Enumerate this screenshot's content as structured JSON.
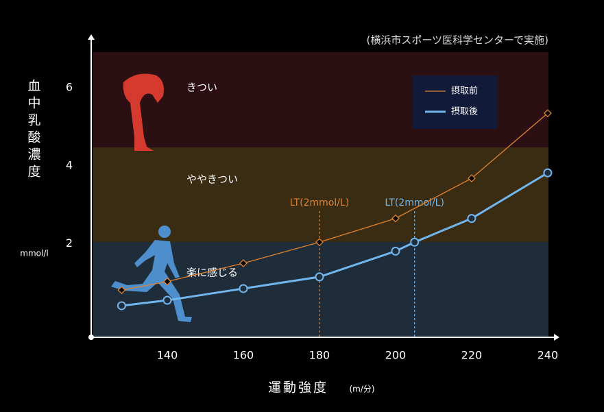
{
  "chart_data": {
    "type": "line",
    "source": "(横浜市スポーツ医科学センターで実施)",
    "ylabel": "血中乳酸濃度",
    "yunit": "mmol/l",
    "xlabel": "運動強度",
    "xunit": "(m/分)",
    "xlim": [
      120,
      242
    ],
    "xticks": [
      140,
      160,
      180,
      200,
      220,
      240
    ],
    "ylim": [
      -0.4,
      7.2
    ],
    "yticks": [
      2,
      4,
      6
    ],
    "zones": [
      {
        "label": "きつい",
        "color": "#2b0f13"
      },
      {
        "label": "ややきつい",
        "color": "#3a2c12"
      },
      {
        "label": "楽に感じる",
        "color": "#1f2d3b"
      }
    ],
    "series": [
      {
        "name": "摂取前",
        "color": "#e0822e",
        "marker": "diamond",
        "x": [
          128,
          140,
          160,
          180,
          200,
          220,
          240
        ],
        "values": [
          0.81,
          1.03,
          1.5,
          2.04,
          2.65,
          3.68,
          5.35
        ]
      },
      {
        "name": "摂取後",
        "color": "#72b6ee",
        "marker": "circle",
        "x": [
          128,
          140,
          160,
          180,
          200,
          205,
          220,
          240
        ],
        "values": [
          0.41,
          0.55,
          0.85,
          1.15,
          1.81,
          2.04,
          2.65,
          3.82
        ]
      }
    ],
    "annotations": [
      {
        "x": 180,
        "label": "LT(2mmol/L)",
        "color": "#e0822e"
      },
      {
        "x": 205,
        "label": "LT(2mmol/L)",
        "color": "#72b6ee"
      }
    ]
  }
}
